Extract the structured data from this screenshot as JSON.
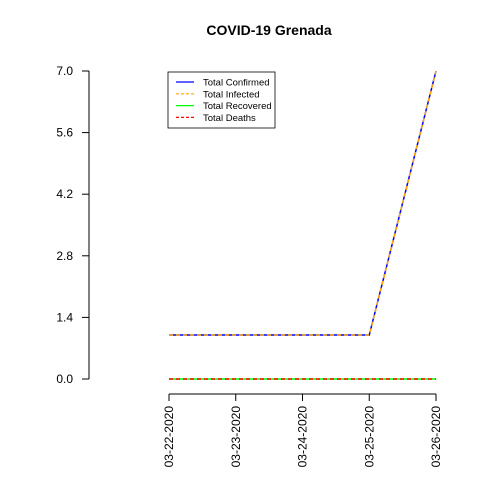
{
  "chart_data": {
    "type": "line",
    "title": "COVID-19 Grenada",
    "xlabel": "",
    "ylabel": "",
    "categories": [
      "03-22-2020",
      "03-23-2020",
      "03-24-2020",
      "03-25-2020",
      "03-26-2020"
    ],
    "y_ticks": [
      "0.0",
      "1.4",
      "2.8",
      "4.2",
      "5.6",
      "7.0"
    ],
    "ylim": [
      0,
      7
    ],
    "grid": false,
    "legend_position": "top-left",
    "series": [
      {
        "name": "Total Confirmed",
        "x": [
          "03-22-2020",
          "03-25-2020",
          "03-26-2020"
        ],
        "values": [
          1,
          1,
          7
        ],
        "color": "#0000FF",
        "dash": "solid"
      },
      {
        "name": "Total Infected",
        "x": [
          "03-22-2020",
          "03-25-2020",
          "03-26-2020"
        ],
        "values": [
          1,
          1,
          7
        ],
        "color": "#FFA500",
        "dash": "dashed"
      },
      {
        "name": "Total Recovered",
        "x": [
          "03-22-2020",
          "03-25-2020",
          "03-26-2020"
        ],
        "values": [
          0,
          0,
          0
        ],
        "color": "#00FF00",
        "dash": "solid"
      },
      {
        "name": "Total Deaths",
        "x": [
          "03-22-2020",
          "03-25-2020",
          "03-26-2020"
        ],
        "values": [
          0,
          0,
          0
        ],
        "color": "#FF0000",
        "dash": "dashed"
      }
    ]
  }
}
